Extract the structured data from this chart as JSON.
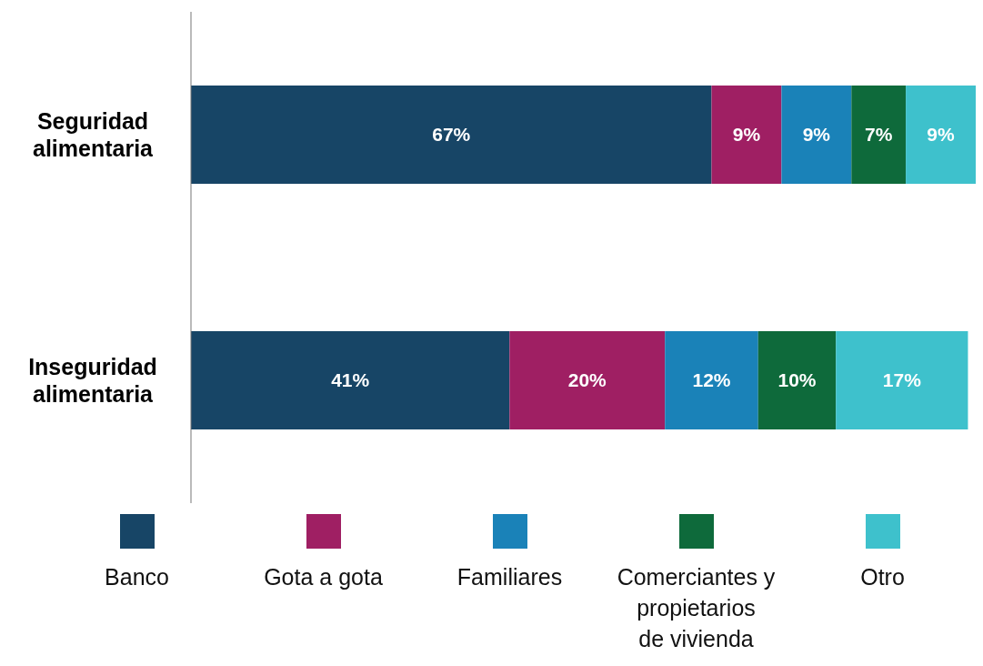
{
  "chart_data": {
    "type": "bar",
    "orientation": "horizontal",
    "stacked": true,
    "grid": false,
    "legend": "bottom",
    "tick_labels": "y",
    "categories": [
      "Seguridad alimentaria",
      "Inseguridad alimentaria"
    ],
    "series": [
      {
        "name": "Banco",
        "color": "#174566",
        "values": [
          67,
          41
        ],
        "value_labels": [
          "67%",
          "41%"
        ]
      },
      {
        "name": "Gota a gota",
        "color": "#9f1f63",
        "values": [
          9,
          20
        ],
        "value_labels": [
          "9%",
          "20%"
        ]
      },
      {
        "name": "Familiares",
        "color": "#1a82b8",
        "values": [
          9,
          12
        ],
        "value_labels": [
          "9%",
          "12%"
        ]
      },
      {
        "name": "Comerciantes y propietarios de vivienda",
        "color": "#0e6a3b",
        "values": [
          7,
          10
        ],
        "value_labels": [
          "7%",
          "10%"
        ]
      },
      {
        "name": "Otro",
        "color": "#3ec1cc",
        "values": [
          9,
          17
        ],
        "value_labels": [
          "9%",
          "17%"
        ]
      }
    ]
  }
}
